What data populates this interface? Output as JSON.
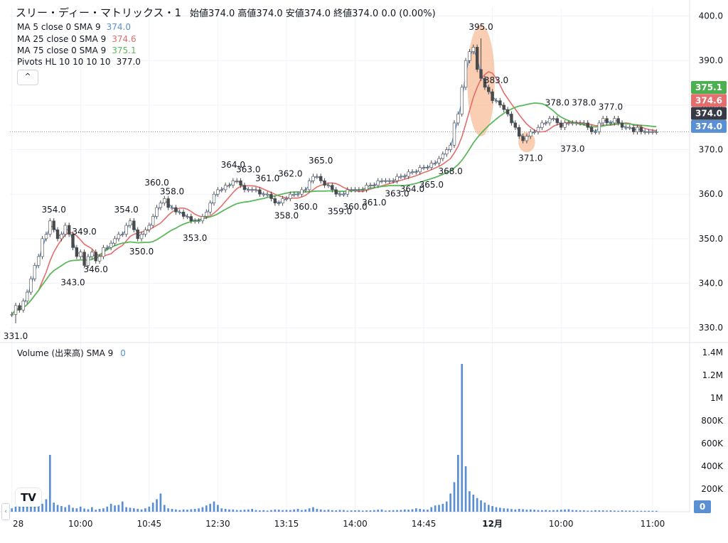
{
  "header": {
    "symbol": "スリー・ディー・マトリックス・1",
    "ohlc": "始値374.0 高値374.0 安値374.0 終値374.0 0.0 (0.00%)"
  },
  "legends": [
    {
      "label": "MA 5 close 0 SMA 9",
      "value": "374.0",
      "color": "#5b8fd4"
    },
    {
      "label": "MA 25 close 0 SMA 9",
      "value": "374.6",
      "color": "#e46d6d"
    },
    {
      "label": "MA 75 close 0 SMA 9",
      "value": "375.1",
      "color": "#5cb85c"
    },
    {
      "label": "Pivots HL 10 10 10 10",
      "value": "377.0",
      "color": "#131722"
    }
  ],
  "collapse_glyph": "^",
  "volume_legend": {
    "label": "Volume (出来高) SMA 9",
    "value": "0"
  },
  "logo_text": "TV",
  "left_arrow": "‹",
  "price_axis": {
    "ticks": [
      "400.0",
      "390.0",
      "380.0",
      "370.0",
      "360.0",
      "350.0",
      "340.0",
      "330.0"
    ],
    "tick_values": [
      400,
      390,
      380,
      370,
      360,
      350,
      340,
      330
    ],
    "badges": [
      {
        "text": "375.1",
        "value": 375.1,
        "color": "#4caf50"
      },
      {
        "text": "374.6",
        "value": 374.6,
        "color": "#e46d6d"
      },
      {
        "text": "374.0",
        "value": 374.0,
        "color": "#363a45"
      },
      {
        "text": "374.0",
        "value": 374.0,
        "color": "#5b8fd4"
      }
    ]
  },
  "volume_axis": {
    "ticks": [
      "1.4M",
      "1.2M",
      "1M",
      "800K",
      "600K",
      "400K",
      "200K"
    ],
    "tick_values": [
      1400000,
      1200000,
      1000000,
      800000,
      600000,
      400000,
      200000
    ],
    "badge": {
      "text": "0",
      "color": "#5b8fd4"
    }
  },
  "time_axis": {
    "labels": [
      "28",
      "10:00",
      "10:45",
      "12:30",
      "13:15",
      "14:00",
      "14:45",
      "12月",
      "10:00",
      "11:00"
    ],
    "label_index": [
      0,
      18,
      36,
      54,
      72,
      90,
      108,
      126,
      144,
      168
    ]
  },
  "pivots": [
    {
      "text": "331.0",
      "i": 1,
      "value": 331.0,
      "pos": "low"
    },
    {
      "text": "354.0",
      "i": 11,
      "value": 354.0,
      "pos": "high"
    },
    {
      "text": "343.0",
      "i": 16,
      "value": 343.0,
      "pos": "low"
    },
    {
      "text": "349.0",
      "i": 19,
      "value": 349.0,
      "pos": "high"
    },
    {
      "text": "346.0",
      "i": 22,
      "value": 346.0,
      "pos": "low"
    },
    {
      "text": "354.0",
      "i": 30,
      "value": 354.0,
      "pos": "high"
    },
    {
      "text": "350.0",
      "i": 34,
      "value": 350.0,
      "pos": "low"
    },
    {
      "text": "360.0",
      "i": 38,
      "value": 360.0,
      "pos": "high"
    },
    {
      "text": "358.0",
      "i": 42,
      "value": 358.0,
      "pos": "high"
    },
    {
      "text": "353.0",
      "i": 48,
      "value": 353.0,
      "pos": "low"
    },
    {
      "text": "364.0",
      "i": 58,
      "value": 364.0,
      "pos": "high"
    },
    {
      "text": "363.0",
      "i": 62,
      "value": 363.0,
      "pos": "high"
    },
    {
      "text": "361.0",
      "i": 67,
      "value": 361.0,
      "pos": "high"
    },
    {
      "text": "362.0",
      "i": 73,
      "value": 362.0,
      "pos": "high"
    },
    {
      "text": "358.0",
      "i": 72,
      "value": 358.0,
      "pos": "low"
    },
    {
      "text": "360.0",
      "i": 77,
      "value": 360.0,
      "pos": "low"
    },
    {
      "text": "365.0",
      "i": 81,
      "value": 365.0,
      "pos": "high"
    },
    {
      "text": "359.0",
      "i": 86,
      "value": 359.0,
      "pos": "low"
    },
    {
      "text": "360.0",
      "i": 90,
      "value": 360.0,
      "pos": "low"
    },
    {
      "text": "361.0",
      "i": 95,
      "value": 361.0,
      "pos": "low"
    },
    {
      "text": "363.0",
      "i": 101,
      "value": 363.0,
      "pos": "low"
    },
    {
      "text": "364.0",
      "i": 105,
      "value": 364.0,
      "pos": "low"
    },
    {
      "text": "365.0",
      "i": 110,
      "value": 365.0,
      "pos": "low"
    },
    {
      "text": "368.0",
      "i": 115,
      "value": 368.0,
      "pos": "low"
    },
    {
      "text": "395.0",
      "i": 123,
      "value": 395.0,
      "pos": "high"
    },
    {
      "text": "383.0",
      "i": 127,
      "value": 383.0,
      "pos": "high"
    },
    {
      "text": "371.0",
      "i": 136,
      "value": 371.0,
      "pos": "low"
    },
    {
      "text": "378.0",
      "i": 143,
      "value": 378.0,
      "pos": "high"
    },
    {
      "text": "378.0",
      "i": 150,
      "value": 378.0,
      "pos": "high"
    },
    {
      "text": "373.0",
      "i": 147,
      "value": 373.0,
      "pos": "low"
    },
    {
      "text": "377.0",
      "i": 157,
      "value": 377.0,
      "pos": "high"
    }
  ],
  "highlights": [
    {
      "i": 123,
      "value": 385.5,
      "rx_bars": 3.6,
      "ry_value": 12.5,
      "color": "#f6b48a"
    },
    {
      "i": 135,
      "value": 371.7,
      "rx_bars": 2.2,
      "ry_value": 2.3,
      "color": "#f6b48a"
    }
  ],
  "colors": {
    "candle": "#4a4a4a",
    "volume": "#5b8fd4",
    "ma5": "#5b8fd4",
    "ma25": "#e46d6d",
    "ma75": "#5cb85c",
    "grid": "#f0f3fa",
    "last_line": "#9598a1"
  },
  "chart_data": {
    "type": "candlestick",
    "title": "スリー・ディー・マトリックス・1",
    "y_range": [
      327,
      402
    ],
    "volume_range": [
      0,
      1450000
    ],
    "close": [
      333,
      335,
      334,
      336,
      338,
      341,
      344,
      346,
      350,
      351,
      354,
      352,
      350,
      351,
      353,
      351,
      348,
      346,
      347,
      344,
      346,
      347,
      345,
      346,
      348,
      348,
      349,
      350,
      351,
      351,
      353,
      354,
      352,
      350,
      351,
      352,
      353,
      355,
      357,
      358,
      359,
      357,
      357,
      356,
      356,
      355,
      355,
      354,
      354,
      354,
      355,
      356,
      358,
      360,
      361,
      361,
      362,
      362,
      363,
      363,
      362,
      361,
      361,
      361,
      361,
      360,
      360,
      360,
      359,
      358,
      358,
      359,
      359,
      360,
      360,
      360,
      361,
      361,
      363,
      364,
      364,
      363,
      362,
      362,
      361,
      360,
      360,
      360,
      361,
      361,
      361,
      361,
      361,
      362,
      362,
      362,
      363,
      363,
      363,
      363,
      363,
      364,
      364,
      364,
      365,
      365,
      365,
      366,
      366,
      366,
      367,
      367,
      368,
      369,
      370,
      371,
      376,
      378,
      384,
      390,
      392,
      393,
      388,
      386,
      384,
      383,
      381,
      381,
      380,
      379,
      378,
      376,
      375,
      373,
      372,
      373,
      374,
      374,
      375,
      376,
      376,
      377,
      377,
      376,
      375,
      376,
      376,
      376,
      376,
      376,
      376,
      375,
      374,
      374,
      376,
      377,
      376,
      376,
      377,
      376,
      375,
      375,
      375,
      374,
      375,
      374,
      374,
      374,
      374,
      374
    ],
    "volume": [
      30000,
      45000,
      60000,
      55000,
      80000,
      120000,
      150000,
      90000,
      70000,
      110000,
      500000,
      80000,
      60000,
      50000,
      40000,
      60000,
      35000,
      30000,
      45000,
      28000,
      22000,
      40000,
      18000,
      25000,
      30000,
      45000,
      70000,
      55000,
      60000,
      90000,
      40000,
      35000,
      30000,
      25000,
      20000,
      30000,
      45000,
      80000,
      110000,
      160000,
      60000,
      30000,
      25000,
      20000,
      15000,
      20000,
      18000,
      22000,
      25000,
      30000,
      40000,
      55000,
      70000,
      90000,
      60000,
      30000,
      25000,
      20000,
      20000,
      15000,
      15000,
      18000,
      20000,
      25000,
      15000,
      12000,
      14000,
      10000,
      15000,
      20000,
      18000,
      14000,
      16000,
      15000,
      20000,
      25000,
      15000,
      20000,
      30000,
      40000,
      25000,
      20000,
      15000,
      18000,
      14000,
      12000,
      16000,
      15000,
      10000,
      12000,
      12000,
      14000,
      10000,
      12000,
      12000,
      15000,
      18000,
      20000,
      10000,
      12000,
      14000,
      15000,
      16000,
      20000,
      18000,
      22000,
      30000,
      25000,
      20000,
      18000,
      40000,
      55000,
      60000,
      70000,
      90000,
      160000,
      260000,
      500000,
      1300000,
      400000,
      180000,
      150000,
      120000,
      100000,
      80000,
      60000,
      50000,
      40000,
      35000,
      30000,
      28000,
      24000,
      20000,
      25000,
      22000,
      18000,
      20000,
      18000,
      15000,
      14000,
      16000,
      12000,
      14000,
      15000,
      18000,
      20000,
      22000,
      15000,
      14000,
      12000,
      12000,
      10000,
      10000,
      14000,
      12000,
      12000,
      10000,
      12000,
      10000,
      8000,
      12000,
      10000,
      10000,
      9000,
      8000,
      8000,
      8000,
      8000,
      8000,
      8000
    ],
    "series": [
      {
        "name": "MA 5 close 0 SMA 9",
        "last": 374.0
      },
      {
        "name": "MA 25 close 0 SMA 9",
        "last": 374.6
      },
      {
        "name": "MA 75 close 0 SMA 9",
        "last": 375.1
      }
    ],
    "ylabel": "",
    "grid": true
  }
}
